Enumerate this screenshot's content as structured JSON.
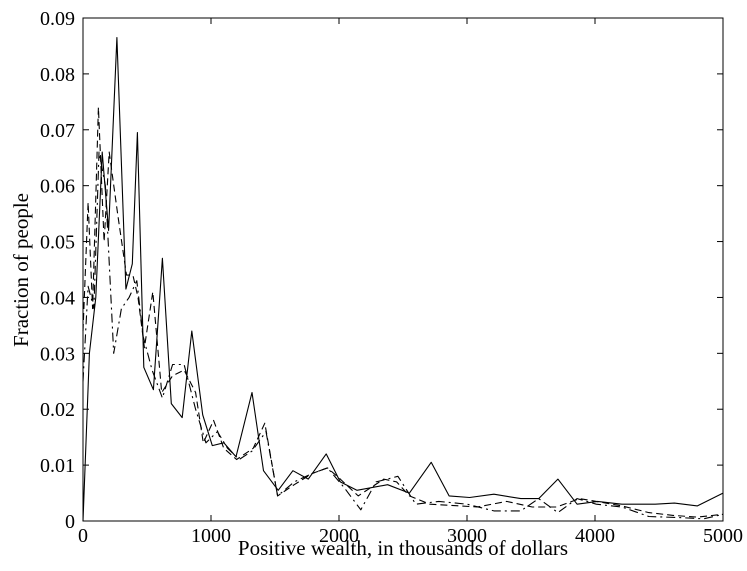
{
  "chart_data": {
    "type": "line",
    "title": "",
    "xlabel": "Positive wealth, in thousands of dollars",
    "ylabel": "Fraction of people",
    "xlim": [
      0,
      5000
    ],
    "ylim": [
      0,
      0.09
    ],
    "xticks": [
      0,
      1000,
      2000,
      3000,
      4000,
      5000
    ],
    "yticks": [
      0,
      0.01,
      0.02,
      0.03,
      0.04,
      0.05,
      0.06,
      0.07,
      0.08,
      0.09
    ],
    "xtick_labels": [
      "0",
      "1000",
      "2000",
      "3000",
      "4000",
      "5000"
    ],
    "ytick_labels": [
      "0",
      "0.01",
      "0.02",
      "0.03",
      "0.04",
      "0.05",
      "0.06",
      "0.07",
      "0.08",
      "0.09"
    ],
    "grid": false,
    "legend": "none",
    "series": [
      {
        "style": "solid",
        "color": "#000000",
        "points": [
          [
            0,
            0
          ],
          [
            50,
            0.03
          ],
          [
            100,
            0.04
          ],
          [
            150,
            0.066
          ],
          [
            200,
            0.052
          ],
          [
            265,
            0.0865
          ],
          [
            335,
            0.0415
          ],
          [
            385,
            0.046
          ],
          [
            425,
            0.0695
          ],
          [
            475,
            0.0275
          ],
          [
            550,
            0.0235
          ],
          [
            620,
            0.047
          ],
          [
            690,
            0.021
          ],
          [
            775,
            0.0185
          ],
          [
            850,
            0.034
          ],
          [
            935,
            0.019
          ],
          [
            1010,
            0.0135
          ],
          [
            1100,
            0.014
          ],
          [
            1195,
            0.0115
          ],
          [
            1320,
            0.023
          ],
          [
            1410,
            0.009
          ],
          [
            1525,
            0.0055
          ],
          [
            1640,
            0.009
          ],
          [
            1760,
            0.0075
          ],
          [
            1900,
            0.012
          ],
          [
            2010,
            0.007
          ],
          [
            2140,
            0.0055
          ],
          [
            2380,
            0.0065
          ],
          [
            2550,
            0.005
          ],
          [
            2720,
            0.0105
          ],
          [
            2860,
            0.0045
          ],
          [
            3020,
            0.0042
          ],
          [
            3210,
            0.0048
          ],
          [
            3420,
            0.004
          ],
          [
            3560,
            0.004
          ],
          [
            3710,
            0.0075
          ],
          [
            3860,
            0.003
          ],
          [
            4020,
            0.0035
          ],
          [
            4210,
            0.003
          ],
          [
            4470,
            0.003
          ],
          [
            4620,
            0.0032
          ],
          [
            4800,
            0.0027
          ],
          [
            5000,
            0.005
          ]
        ]
      },
      {
        "style": "dashed",
        "color": "#000000",
        "points": [
          [
            0,
            0.034
          ],
          [
            40,
            0.057
          ],
          [
            75,
            0.038
          ],
          [
            120,
            0.074
          ],
          [
            165,
            0.05
          ],
          [
            205,
            0.066
          ],
          [
            270,
            0.055
          ],
          [
            340,
            0.044
          ],
          [
            390,
            0.044
          ],
          [
            430,
            0.04
          ],
          [
            480,
            0.031
          ],
          [
            545,
            0.041
          ],
          [
            615,
            0.023
          ],
          [
            700,
            0.026
          ],
          [
            790,
            0.027
          ],
          [
            880,
            0.023
          ],
          [
            940,
            0.014
          ],
          [
            1020,
            0.018
          ],
          [
            1100,
            0.013
          ],
          [
            1200,
            0.011
          ],
          [
            1330,
            0.013
          ],
          [
            1420,
            0.0175
          ],
          [
            1520,
            0.0045
          ],
          [
            1650,
            0.0065
          ],
          [
            1790,
            0.0085
          ],
          [
            1910,
            0.0095
          ],
          [
            2010,
            0.0075
          ],
          [
            2150,
            0.0045
          ],
          [
            2350,
            0.0075
          ],
          [
            2450,
            0.007
          ],
          [
            2550,
            0.0045
          ],
          [
            2710,
            0.003
          ],
          [
            2880,
            0.0028
          ],
          [
            3080,
            0.0025
          ],
          [
            3310,
            0.0035
          ],
          [
            3510,
            0.0025
          ],
          [
            3700,
            0.0025
          ],
          [
            3880,
            0.004
          ],
          [
            4010,
            0.0035
          ],
          [
            4210,
            0.0027
          ],
          [
            4420,
            0.0015
          ],
          [
            4610,
            0.001
          ],
          [
            4800,
            0.0007
          ],
          [
            5000,
            0.0012
          ]
        ]
      },
      {
        "style": "dashdot",
        "color": "#000000",
        "points": [
          [
            0,
            0.025
          ],
          [
            40,
            0.042
          ],
          [
            85,
            0.038
          ],
          [
            125,
            0.066
          ],
          [
            175,
            0.06
          ],
          [
            240,
            0.03
          ],
          [
            300,
            0.038
          ],
          [
            360,
            0.04
          ],
          [
            420,
            0.043
          ],
          [
            470,
            0.033
          ],
          [
            540,
            0.027
          ],
          [
            620,
            0.022
          ],
          [
            700,
            0.028
          ],
          [
            790,
            0.028
          ],
          [
            880,
            0.02
          ],
          [
            960,
            0.014
          ],
          [
            1050,
            0.016
          ],
          [
            1130,
            0.013
          ],
          [
            1220,
            0.011
          ],
          [
            1320,
            0.0125
          ],
          [
            1430,
            0.016
          ],
          [
            1520,
            0.0045
          ],
          [
            1650,
            0.007
          ],
          [
            1790,
            0.0085
          ],
          [
            1910,
            0.0095
          ],
          [
            2040,
            0.006
          ],
          [
            2170,
            0.002
          ],
          [
            2290,
            0.007
          ],
          [
            2460,
            0.008
          ],
          [
            2600,
            0.003
          ],
          [
            2780,
            0.0035
          ],
          [
            3000,
            0.003
          ],
          [
            3210,
            0.0018
          ],
          [
            3420,
            0.0018
          ],
          [
            3560,
            0.004
          ],
          [
            3710,
            0.0015
          ],
          [
            3860,
            0.004
          ],
          [
            4010,
            0.003
          ],
          [
            4210,
            0.0025
          ],
          [
            4420,
            0.0008
          ],
          [
            4660,
            0.0006
          ],
          [
            4850,
            0.0004
          ],
          [
            5000,
            0.0012
          ]
        ]
      }
    ]
  }
}
